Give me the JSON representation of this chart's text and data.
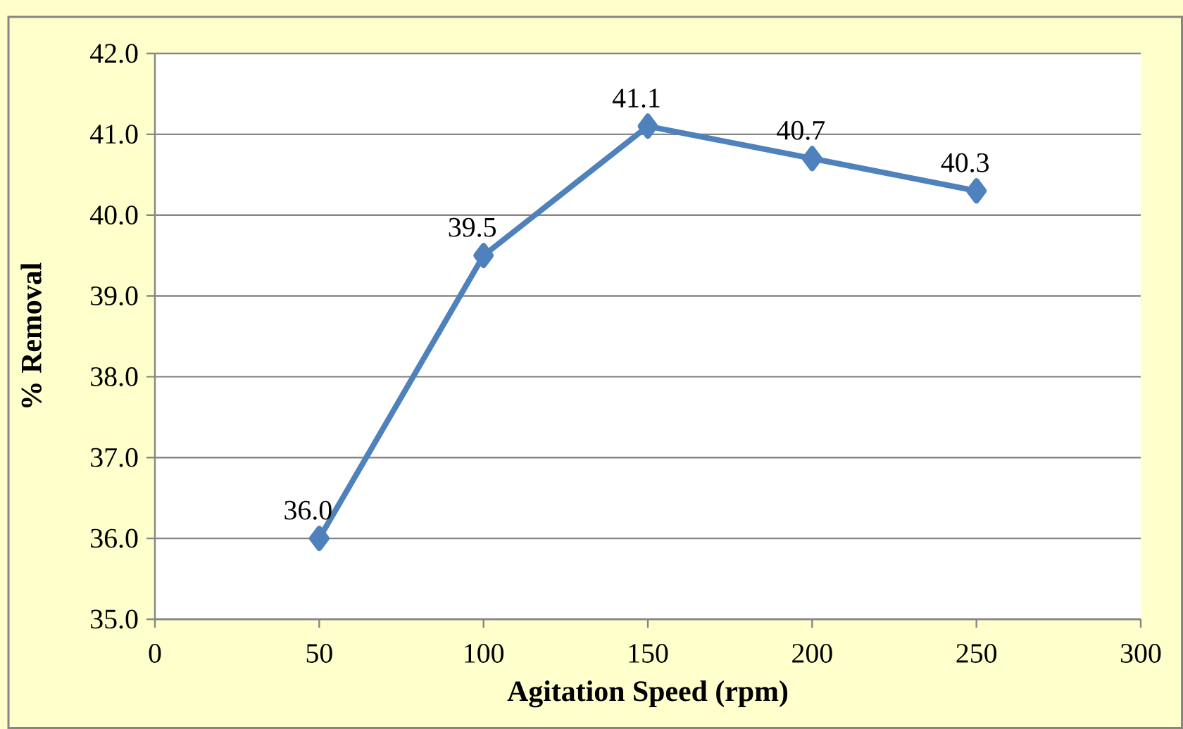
{
  "chart_data": {
    "type": "line",
    "xlabel": "Agitation Speed (rpm)",
    "ylabel": "% Removal",
    "x": [
      50,
      100,
      150,
      200,
      250
    ],
    "series": [
      {
        "color": "#4f81bd",
        "values": [
          36.0,
          39.5,
          41.1,
          40.7,
          40.3
        ],
        "value_labels": [
          "36.0",
          "39.5",
          "41.1",
          "40.7",
          "40.3"
        ]
      }
    ],
    "xlim": [
      0,
      300
    ],
    "xticks": [
      0,
      50,
      100,
      150,
      200,
      250,
      300
    ],
    "ylim": [
      35,
      42
    ],
    "yticks": [
      {
        "value": 35,
        "label": "35.0"
      },
      {
        "value": 36,
        "label": "36.0"
      },
      {
        "value": 37,
        "label": "37.0"
      },
      {
        "value": 38,
        "label": "38.0"
      },
      {
        "value": 39,
        "label": "39.0"
      },
      {
        "value": 40,
        "label": "40.0"
      },
      {
        "value": 41,
        "label": "41.0"
      },
      {
        "value": 42,
        "label": "42.0"
      }
    ],
    "grid": "y",
    "marker": "diamond",
    "line_style": "solid"
  }
}
